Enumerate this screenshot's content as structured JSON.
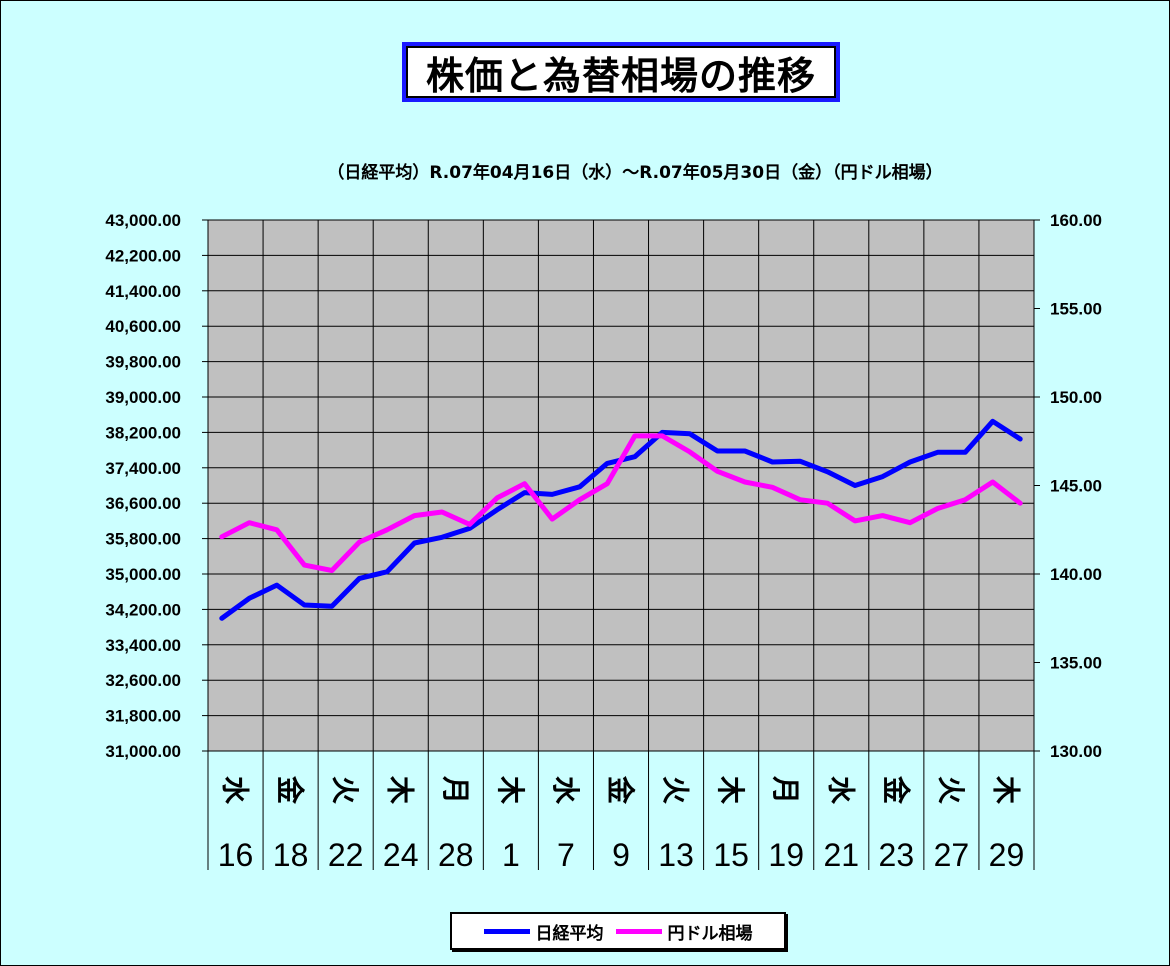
{
  "chart_data": {
    "type": "line",
    "title": "株価と為替相場の推移",
    "subtitle": "（日経平均）R.07年04月16日（水）～R.07年05月30日（金）（円ドル相場）",
    "x_day_labels": [
      "水",
      "金",
      "火",
      "木",
      "月",
      "木",
      "水",
      "金",
      "火",
      "木",
      "月",
      "水",
      "金",
      "火",
      "木"
    ],
    "x_date_labels": [
      "16",
      "18",
      "22",
      "24",
      "28",
      "1",
      "7",
      "9",
      "13",
      "15",
      "19",
      "21",
      "23",
      "27",
      "29"
    ],
    "y_left": {
      "min": 31000,
      "max": 43000,
      "step": 800,
      "tick_labels": [
        "43,000.00",
        "42,200.00",
        "41,400.00",
        "40,600.00",
        "39,800.00",
        "39,000.00",
        "38,200.00",
        "37,400.00",
        "36,600.00",
        "35,800.00",
        "35,000.00",
        "34,200.00",
        "33,400.00",
        "32,600.00",
        "31,800.00",
        "31,000.00"
      ]
    },
    "y_right": {
      "min": 130,
      "max": 160,
      "step": 5,
      "tick_labels": [
        "160.00",
        "155.00",
        "150.00",
        "145.00",
        "140.00",
        "135.00",
        "130.00"
      ]
    },
    "grid": true,
    "legend_position": "bottom",
    "series": [
      {
        "name": "日経平均",
        "axis": "left",
        "color": "#0000ff",
        "values": [
          34000,
          34450,
          34750,
          34300,
          34270,
          34900,
          35050,
          35700,
          35830,
          36030,
          36450,
          36840,
          36800,
          36970,
          37500,
          37650,
          38200,
          38170,
          37780,
          37780,
          37530,
          37550,
          37310,
          37000,
          37200,
          37530,
          37750,
          37750,
          38450,
          38050
        ]
      },
      {
        "name": "円ドル相場",
        "axis": "right",
        "color": "#ff00ff",
        "values": [
          142.1,
          142.9,
          142.5,
          140.5,
          140.2,
          141.8,
          142.5,
          143.3,
          143.5,
          142.8,
          144.3,
          145.1,
          143.1,
          144.2,
          145.1,
          147.8,
          147.8,
          146.9,
          145.8,
          145.2,
          144.9,
          144.2,
          144.0,
          143.0,
          143.3,
          142.9,
          143.7,
          144.2,
          145.2,
          144.0
        ]
      }
    ]
  }
}
